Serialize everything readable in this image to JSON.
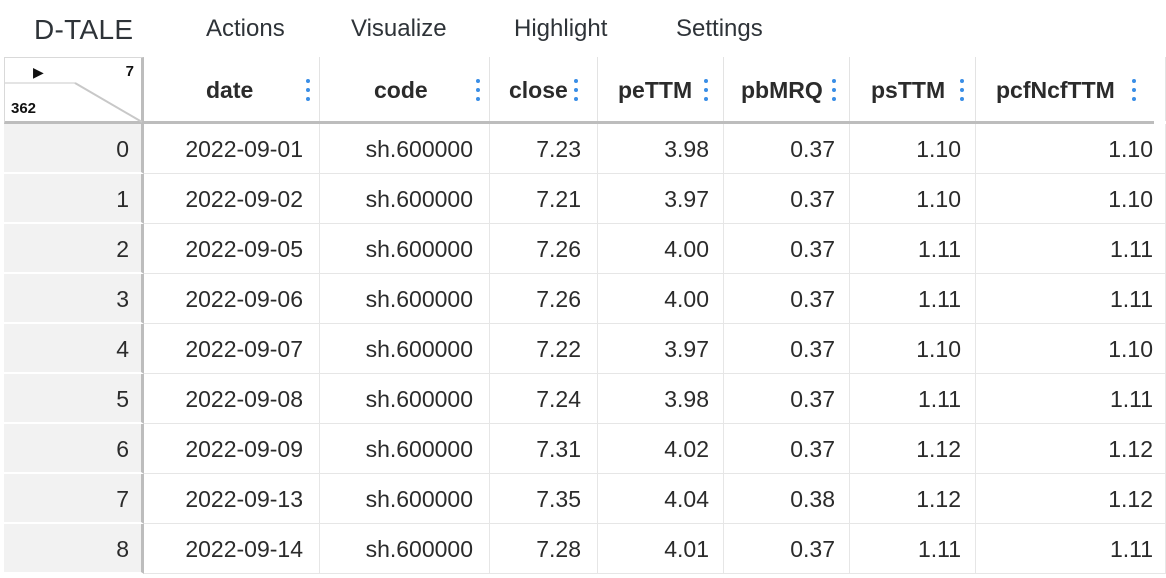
{
  "menubar": {
    "brand": "D-TALE",
    "items": [
      "Actions",
      "Visualize",
      "Highlight",
      "Settings"
    ]
  },
  "corner": {
    "toggle_glyph": "▶",
    "col_count": "7",
    "row_count": "362"
  },
  "columns": [
    "date",
    "code",
    "close",
    "peTTM",
    "pbMRQ",
    "psTTM",
    "pcfNcfTTM"
  ],
  "rows": [
    {
      "index": "0",
      "values": [
        "2022-09-01",
        "sh.600000",
        "7.23",
        "3.98",
        "0.37",
        "1.10",
        "1.10"
      ]
    },
    {
      "index": "1",
      "values": [
        "2022-09-02",
        "sh.600000",
        "7.21",
        "3.97",
        "0.37",
        "1.10",
        "1.10"
      ]
    },
    {
      "index": "2",
      "values": [
        "2022-09-05",
        "sh.600000",
        "7.26",
        "4.00",
        "0.37",
        "1.11",
        "1.11"
      ]
    },
    {
      "index": "3",
      "values": [
        "2022-09-06",
        "sh.600000",
        "7.26",
        "4.00",
        "0.37",
        "1.11",
        "1.11"
      ]
    },
    {
      "index": "4",
      "values": [
        "2022-09-07",
        "sh.600000",
        "7.22",
        "3.97",
        "0.37",
        "1.10",
        "1.10"
      ]
    },
    {
      "index": "5",
      "values": [
        "2022-09-08",
        "sh.600000",
        "7.24",
        "3.98",
        "0.37",
        "1.11",
        "1.11"
      ]
    },
    {
      "index": "6",
      "values": [
        "2022-09-09",
        "sh.600000",
        "7.31",
        "4.02",
        "0.37",
        "1.12",
        "1.12"
      ]
    },
    {
      "index": "7",
      "values": [
        "2022-09-13",
        "sh.600000",
        "7.35",
        "4.04",
        "0.38",
        "1.12",
        "1.12"
      ]
    },
    {
      "index": "8",
      "values": [
        "2022-09-14",
        "sh.600000",
        "7.28",
        "4.01",
        "0.37",
        "1.11",
        "1.11"
      ]
    }
  ],
  "colors": {
    "accent": "#3a8ee6",
    "index_bg": "#f2f2f2",
    "divider": "#bdbdbd"
  },
  "icons": {
    "column_menu": "kebab-menu-icon",
    "expand": "play-triangle-icon"
  }
}
